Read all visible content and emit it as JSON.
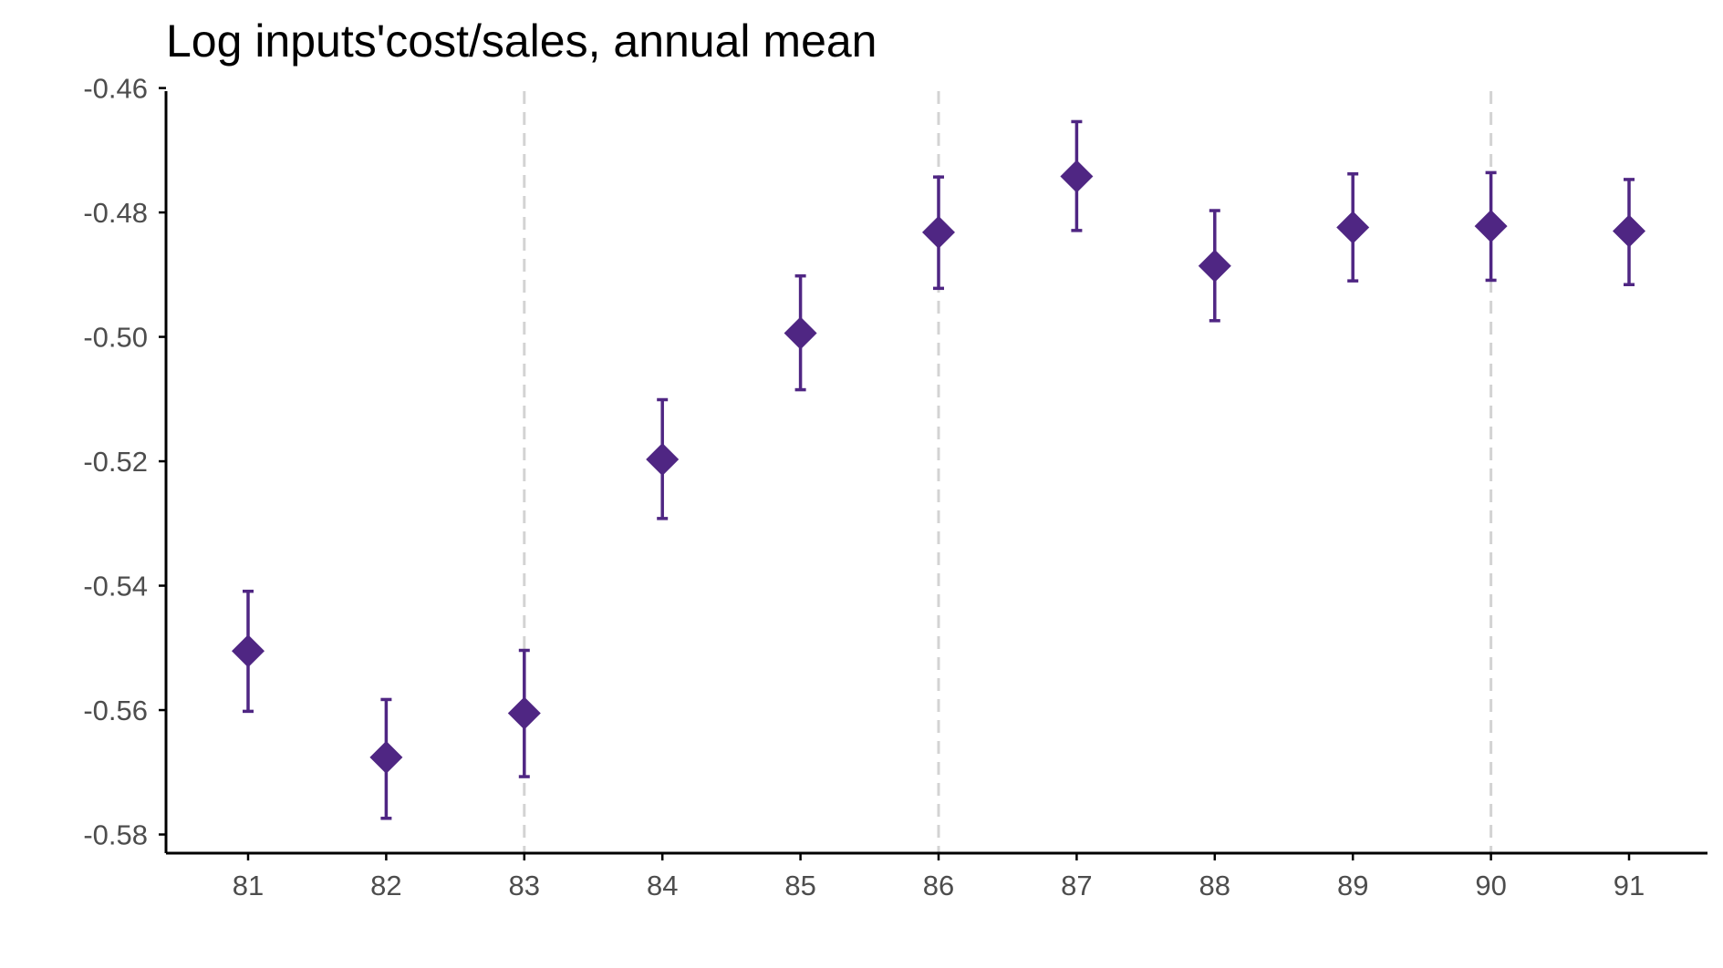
{
  "chart_data": {
    "type": "scatter",
    "title": "Log inputs'cost/sales, annual mean",
    "xlabel": "",
    "ylabel": "",
    "x": [
      "81",
      "82",
      "83",
      "84",
      "85",
      "86",
      "87",
      "88",
      "89",
      "90",
      "91"
    ],
    "y": [
      -0.5505,
      -0.5676,
      -0.5605,
      -0.5197,
      -0.4994,
      -0.4832,
      -0.4742,
      -0.4886,
      -0.4824,
      -0.4822,
      -0.483
    ],
    "y_low": [
      -0.5602,
      -0.5774,
      -0.5707,
      -0.5292,
      -0.5085,
      -0.4922,
      -0.4829,
      -0.4974,
      -0.491,
      -0.4909,
      -0.4916
    ],
    "y_high": [
      -0.5409,
      -0.5583,
      -0.5504,
      -0.5101,
      -0.4902,
      -0.4743,
      -0.4654,
      -0.4797,
      -0.4738,
      -0.4736,
      -0.4747
    ],
    "y_ticks": [
      "-0.46",
      "-0.48",
      "-0.50",
      "-0.52",
      "-0.54",
      "-0.56",
      "-0.58"
    ],
    "y_tick_values": [
      -0.46,
      -0.48,
      -0.5,
      -0.52,
      -0.54,
      -0.56,
      -0.58
    ],
    "ylim": [
      -0.583,
      -0.4605
    ],
    "reference_lines_x": [
      "83",
      "86",
      "90"
    ],
    "marker": "diamond",
    "grid": false,
    "legend": "none",
    "colors": {
      "points": "#4f2683",
      "reference_lines": "#d3d3d3",
      "axis": "#000000",
      "tick_labels": "#4d4d4d"
    }
  }
}
